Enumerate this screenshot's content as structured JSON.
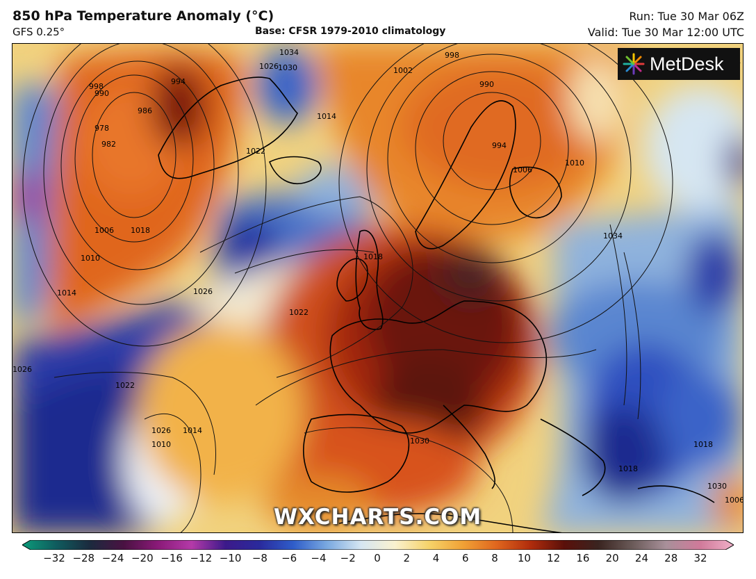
{
  "header": {
    "title": "850 hPa Temperature Anomaly (°C)",
    "model": "GFS 0.25°",
    "base": "Base: CFSR 1979-2010 climatology",
    "run": "Run: Tue 30 Mar 06Z",
    "valid": "Valid: Tue 30 Mar 12:00 UTC"
  },
  "logo": {
    "text": "MetDesk",
    "icon": "metdesk-burst-icon"
  },
  "watermark": "WXCHARTS.COM",
  "map": {
    "region": "North Atlantic and Europe",
    "isobar_labels": [
      "998",
      "994",
      "990",
      "986",
      "982",
      "978",
      "1022",
      "1026",
      "1030",
      "1034",
      "1002",
      "998",
      "990",
      "994",
      "1006",
      "1010",
      "1014",
      "1018",
      "1006",
      "1010",
      "1014",
      "1018",
      "1022",
      "1026",
      "1030",
      "1034",
      "1018",
      "1022",
      "1026",
      "1026",
      "1010",
      "1014",
      "1018",
      "1030",
      "1006",
      "1010",
      "1014"
    ],
    "colors": {
      "deep_cold": "#1d2a8f",
      "cold": "#3a64c8",
      "cool": "#c9dcf0",
      "neutral": "#f4ead0",
      "warm": "#f2a33a",
      "hot": "#d8521a",
      "very_hot": "#7a1508",
      "extreme": "#3a1812"
    }
  },
  "colorbar": {
    "ticks": [
      "−32",
      "−28",
      "−24",
      "−20",
      "−16",
      "−12",
      "−10",
      "−8",
      "−6",
      "−4",
      "−2",
      "0",
      "2",
      "4",
      "6",
      "8",
      "10",
      "12",
      "16",
      "20",
      "24",
      "28",
      "32"
    ],
    "stops": [
      "#0c9b7a",
      "#0f5c5e",
      "#1b2a3e",
      "#4a1242",
      "#8a1a78",
      "#b43aa8",
      "#3c1a8a",
      "#2a2a9c",
      "#2f5dc9",
      "#7aa9e0",
      "#d6e6f2",
      "#faf1cf",
      "#f6d36a",
      "#f0a236",
      "#e0661e",
      "#b02c0c",
      "#5a100a",
      "#3a2420",
      "#6a5a58",
      "#a8909a",
      "#d07a9a",
      "#f0b0c8"
    ]
  }
}
